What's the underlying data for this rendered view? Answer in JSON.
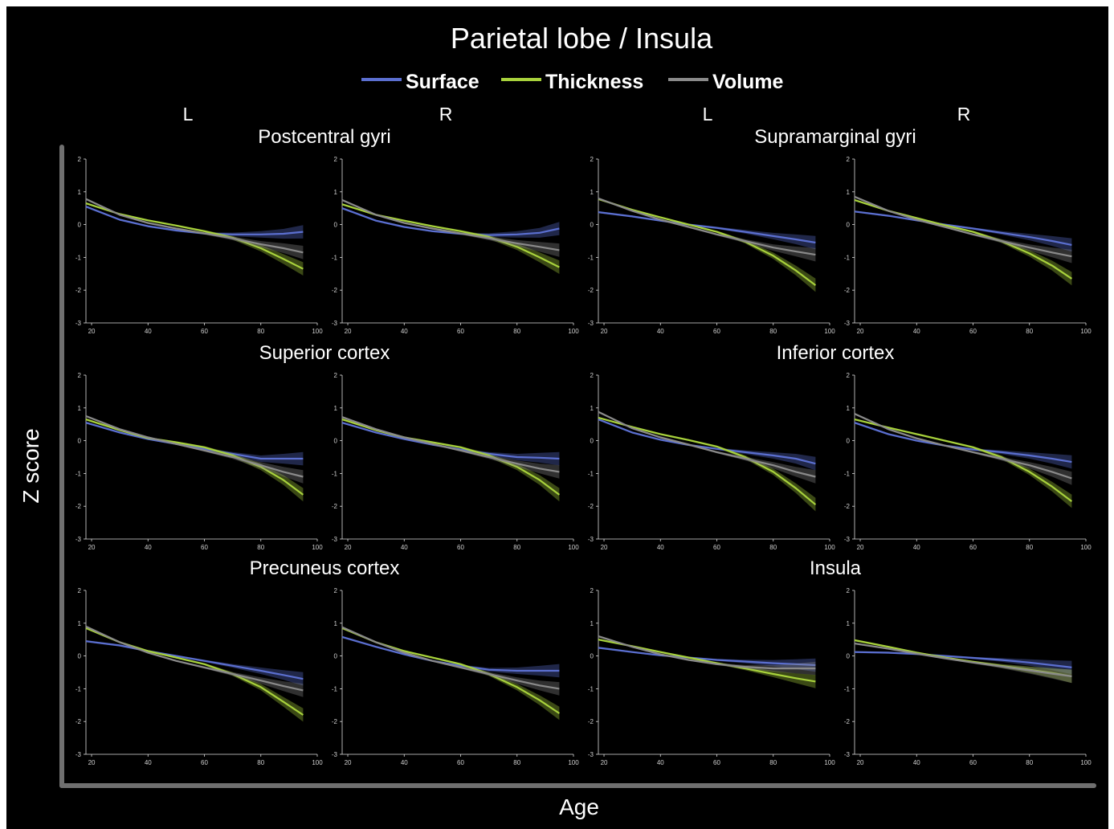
{
  "title": "Parietal lobe / Insula",
  "legend": [
    {
      "label": "Surface",
      "color": "#5b6fd0"
    },
    {
      "label": "Thickness",
      "color": "#a8d23c"
    },
    {
      "label": "Volume",
      "color": "#8a8a8a"
    }
  ],
  "side_labels": [
    "L",
    "R",
    "L",
    "R"
  ],
  "xlabel": "Age",
  "ylabel": "Z score",
  "chart_data": {
    "type": "line",
    "xlim": [
      18,
      100
    ],
    "ylim": [
      -3,
      2
    ],
    "x_ticks": [
      20,
      40,
      60,
      80,
      100
    ],
    "y_ticks": [
      2,
      1,
      0,
      -1,
      -2,
      -3
    ],
    "x": [
      18,
      30,
      40,
      50,
      60,
      70,
      80,
      88,
      95
    ],
    "regions": [
      {
        "name": "Postcentral gyri",
        "panels": [
          {
            "side": "L",
            "series": [
              {
                "name": "Surface",
                "values": [
                  0.55,
                  0.15,
                  -0.05,
                  -0.18,
                  -0.27,
                  -0.3,
                  -0.3,
                  -0.28,
                  -0.22
                ]
              },
              {
                "name": "Thickness",
                "values": [
                  0.65,
                  0.32,
                  0.13,
                  -0.03,
                  -0.2,
                  -0.4,
                  -0.72,
                  -1.05,
                  -1.35
                ]
              },
              {
                "name": "Volume",
                "values": [
                  0.78,
                  0.3,
                  0.05,
                  -0.12,
                  -0.27,
                  -0.42,
                  -0.6,
                  -0.72,
                  -0.85
                ]
              }
            ]
          },
          {
            "side": "R",
            "series": [
              {
                "name": "Surface",
                "values": [
                  0.5,
                  0.12,
                  -0.07,
                  -0.2,
                  -0.28,
                  -0.32,
                  -0.3,
                  -0.25,
                  -0.12
                ]
              },
              {
                "name": "Thickness",
                "values": [
                  0.62,
                  0.3,
                  0.12,
                  -0.05,
                  -0.2,
                  -0.38,
                  -0.68,
                  -1.0,
                  -1.3
                ]
              },
              {
                "name": "Volume",
                "values": [
                  0.75,
                  0.3,
                  0.05,
                  -0.12,
                  -0.27,
                  -0.42,
                  -0.57,
                  -0.68,
                  -0.78
                ]
              }
            ]
          }
        ]
      },
      {
        "name": "Supramarginal gyri",
        "panels": [
          {
            "side": "L",
            "series": [
              {
                "name": "Surface",
                "values": [
                  0.38,
                  0.25,
                  0.12,
                  0.0,
                  -0.1,
                  -0.22,
                  -0.35,
                  -0.45,
                  -0.55
                ]
              },
              {
                "name": "Thickness",
                "values": [
                  0.78,
                  0.45,
                  0.22,
                  0.0,
                  -0.22,
                  -0.52,
                  -0.95,
                  -1.4,
                  -1.85
                ]
              },
              {
                "name": "Volume",
                "values": [
                  0.8,
                  0.42,
                  0.15,
                  -0.07,
                  -0.3,
                  -0.5,
                  -0.7,
                  -0.82,
                  -0.92
                ]
              }
            ]
          },
          {
            "side": "R",
            "series": [
              {
                "name": "Surface",
                "values": [
                  0.4,
                  0.27,
                  0.13,
                  0.0,
                  -0.12,
                  -0.25,
                  -0.38,
                  -0.5,
                  -0.62
                ]
              },
              {
                "name": "Thickness",
                "values": [
                  0.75,
                  0.42,
                  0.2,
                  -0.02,
                  -0.22,
                  -0.5,
                  -0.88,
                  -1.25,
                  -1.65
                ]
              },
              {
                "name": "Volume",
                "values": [
                  0.85,
                  0.42,
                  0.15,
                  -0.07,
                  -0.3,
                  -0.5,
                  -0.7,
                  -0.85,
                  -0.97
                ]
              }
            ]
          }
        ]
      },
      {
        "name": "Superior cortex",
        "panels": [
          {
            "side": "L",
            "series": [
              {
                "name": "Surface",
                "values": [
                  0.55,
                  0.25,
                  0.05,
                  -0.1,
                  -0.25,
                  -0.4,
                  -0.55,
                  -0.55,
                  -0.55
                ]
              },
              {
                "name": "Thickness",
                "values": [
                  0.65,
                  0.32,
                  0.08,
                  -0.05,
                  -0.2,
                  -0.45,
                  -0.8,
                  -1.2,
                  -1.65
                ]
              },
              {
                "name": "Volume",
                "values": [
                  0.75,
                  0.35,
                  0.1,
                  -0.1,
                  -0.3,
                  -0.5,
                  -0.75,
                  -0.95,
                  -1.1
                ]
              }
            ]
          },
          {
            "side": "R",
            "series": [
              {
                "name": "Surface",
                "values": [
                  0.55,
                  0.25,
                  0.05,
                  -0.12,
                  -0.27,
                  -0.4,
                  -0.5,
                  -0.52,
                  -0.55
                ]
              },
              {
                "name": "Thickness",
                "values": [
                  0.65,
                  0.32,
                  0.1,
                  -0.05,
                  -0.2,
                  -0.45,
                  -0.8,
                  -1.2,
                  -1.65
                ]
              },
              {
                "name": "Volume",
                "values": [
                  0.72,
                  0.35,
                  0.1,
                  -0.1,
                  -0.3,
                  -0.5,
                  -0.7,
                  -0.85,
                  -0.95
                ]
              }
            ]
          }
        ]
      },
      {
        "name": "Inferior cortex",
        "panels": [
          {
            "side": "L",
            "series": [
              {
                "name": "Surface",
                "values": [
                  0.65,
                  0.25,
                  0.03,
                  -0.13,
                  -0.25,
                  -0.35,
                  -0.45,
                  -0.55,
                  -0.7
                ]
              },
              {
                "name": "Thickness",
                "values": [
                  0.7,
                  0.42,
                  0.2,
                  0.02,
                  -0.18,
                  -0.5,
                  -0.95,
                  -1.45,
                  -1.95
                ]
              },
              {
                "name": "Volume",
                "values": [
                  0.88,
                  0.38,
                  0.1,
                  -0.12,
                  -0.35,
                  -0.55,
                  -0.75,
                  -0.95,
                  -1.1
                ]
              }
            ]
          },
          {
            "side": "R",
            "series": [
              {
                "name": "Surface",
                "values": [
                  0.55,
                  0.2,
                  0.0,
                  -0.15,
                  -0.27,
                  -0.35,
                  -0.45,
                  -0.55,
                  -0.65
                ]
              },
              {
                "name": "Thickness",
                "values": [
                  0.65,
                  0.4,
                  0.2,
                  0.0,
                  -0.2,
                  -0.5,
                  -0.95,
                  -1.4,
                  -1.85
                ]
              },
              {
                "name": "Volume",
                "values": [
                  0.82,
                  0.35,
                  0.07,
                  -0.15,
                  -0.35,
                  -0.55,
                  -0.75,
                  -0.95,
                  -1.15
                ]
              }
            ]
          }
        ]
      },
      {
        "name": "Precuneus cortex",
        "panels": [
          {
            "side": "L",
            "series": [
              {
                "name": "Surface",
                "values": [
                  0.45,
                  0.32,
                  0.15,
                  0.0,
                  -0.15,
                  -0.3,
                  -0.45,
                  -0.58,
                  -0.7
                ]
              },
              {
                "name": "Thickness",
                "values": [
                  0.85,
                  0.42,
                  0.15,
                  -0.05,
                  -0.25,
                  -0.55,
                  -0.95,
                  -1.4,
                  -1.8
                ]
              },
              {
                "name": "Volume",
                "values": [
                  0.9,
                  0.42,
                  0.1,
                  -0.15,
                  -0.35,
                  -0.55,
                  -0.75,
                  -0.92,
                  -1.05
                ]
              }
            ]
          },
          {
            "side": "R",
            "series": [
              {
                "name": "Surface",
                "values": [
                  0.58,
                  0.28,
                  0.05,
                  -0.15,
                  -0.3,
                  -0.42,
                  -0.45,
                  -0.45,
                  -0.45
                ]
              },
              {
                "name": "Thickness",
                "values": [
                  0.85,
                  0.42,
                  0.15,
                  -0.05,
                  -0.25,
                  -0.55,
                  -0.95,
                  -1.35,
                  -1.75
                ]
              },
              {
                "name": "Volume",
                "values": [
                  0.88,
                  0.42,
                  0.1,
                  -0.15,
                  -0.35,
                  -0.55,
                  -0.75,
                  -0.9,
                  -1.0
                ]
              }
            ]
          }
        ]
      },
      {
        "name": "Insula",
        "panels": [
          {
            "side": "L",
            "series": [
              {
                "name": "Surface",
                "values": [
                  0.25,
                  0.12,
                  0.02,
                  -0.05,
                  -0.12,
                  -0.17,
                  -0.22,
                  -0.25,
                  -0.28
                ]
              },
              {
                "name": "Thickness",
                "values": [
                  0.5,
                  0.3,
                  0.12,
                  -0.05,
                  -0.22,
                  -0.38,
                  -0.55,
                  -0.68,
                  -0.78
                ]
              },
              {
                "name": "Volume",
                "values": [
                  0.6,
                  0.28,
                  0.05,
                  -0.12,
                  -0.25,
                  -0.33,
                  -0.38,
                  -0.38,
                  -0.38
                ]
              }
            ]
          },
          {
            "side": "R",
            "series": [
              {
                "name": "Surface",
                "values": [
                  0.12,
                  0.1,
                  0.06,
                  0.0,
                  -0.06,
                  -0.12,
                  -0.2,
                  -0.28,
                  -0.35
                ]
              },
              {
                "name": "Thickness",
                "values": [
                  0.48,
                  0.28,
                  0.1,
                  -0.05,
                  -0.18,
                  -0.3,
                  -0.42,
                  -0.52,
                  -0.62
                ]
              },
              {
                "name": "Volume",
                "values": [
                  0.38,
                  0.22,
                  0.07,
                  -0.07,
                  -0.2,
                  -0.32,
                  -0.44,
                  -0.54,
                  -0.62
                ]
              }
            ]
          }
        ]
      }
    ]
  }
}
